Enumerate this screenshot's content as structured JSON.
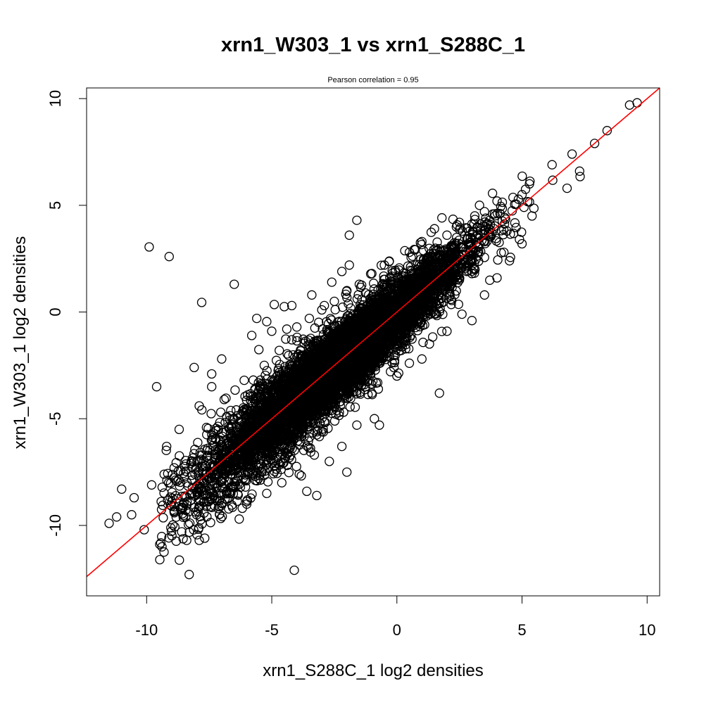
{
  "chart_data": {
    "type": "scatter",
    "title": "xrn1_W303_1 vs xrn1_S288C_1",
    "subtitle": "Pearson correlation =  0.95",
    "xlabel": "xrn1_S288C_1 log2 densities",
    "ylabel": "xrn1_W303_1 log2 densities",
    "xlim": [
      -12.4,
      10.5
    ],
    "ylim": [
      -13.3,
      10.5
    ],
    "xticks": [
      -10,
      -5,
      0,
      5,
      10
    ],
    "yticks": [
      -10,
      -5,
      0,
      5,
      10
    ],
    "xtick_labels": [
      "-10",
      "-5",
      "0",
      "5",
      "10"
    ],
    "ytick_labels": [
      "-10",
      "-5",
      "0",
      "5",
      "10"
    ],
    "grid": false,
    "legend": "none",
    "point_style": "open-circle",
    "point_color": "#000000",
    "fit_line": {
      "intercept": 0,
      "slope": 1,
      "color": "#ff0000"
    },
    "points": [
      [
        -9.9,
        3.05
      ],
      [
        -9.1,
        2.6
      ],
      [
        -6.5,
        1.3
      ],
      [
        -7.8,
        0.45
      ],
      [
        -4.9,
        0.35
      ],
      [
        -4.5,
        0.25
      ],
      [
        -4.2,
        0.3
      ],
      [
        -5.6,
        -0.3
      ],
      [
        -5.2,
        -0.45
      ],
      [
        -4.4,
        -0.8
      ],
      [
        -5.0,
        -0.9
      ],
      [
        -5.8,
        -1.1
      ],
      [
        -9.6,
        -3.5
      ],
      [
        -8.1,
        -2.6
      ],
      [
        -7.0,
        -2.2
      ],
      [
        1.7,
        -3.8
      ],
      [
        -1.3,
        -2.5
      ],
      [
        -0.7,
        -5.3
      ],
      [
        -4.1,
        -12.1
      ],
      [
        -8.3,
        -12.3
      ],
      [
        -11.5,
        -9.9
      ],
      [
        -11.0,
        -8.3
      ],
      [
        -10.1,
        -10.2
      ],
      [
        -10.6,
        -9.5
      ],
      [
        -11.2,
        -9.6
      ],
      [
        -1.6,
        4.3
      ],
      [
        -1.9,
        3.6
      ],
      [
        -1.9,
        2.2
      ],
      [
        -2.2,
        1.9
      ],
      [
        -2.6,
        1.4
      ],
      [
        -3.4,
        0.8
      ],
      [
        -2.9,
        0.3
      ],
      [
        1.5,
        3.9
      ],
      [
        3.3,
        5.0
      ],
      [
        3.9,
        4.6
      ],
      [
        1.3,
        -1.5
      ],
      [
        0.4,
        -1.2
      ],
      [
        2.5,
        1.5
      ],
      [
        2.6,
        -0.1
      ],
      [
        3.0,
        1.8
      ],
      [
        4.4,
        3.8
      ],
      [
        4.9,
        3.4
      ],
      [
        5.4,
        4.5
      ],
      [
        6.8,
        5.8
      ],
      [
        7.3,
        6.6
      ],
      [
        6.2,
        6.9
      ],
      [
        7.0,
        7.4
      ],
      [
        7.9,
        7.9
      ],
      [
        8.4,
        8.5
      ],
      [
        9.3,
        9.7
      ],
      [
        9.6,
        9.8
      ],
      [
        -8.9,
        -7.3
      ],
      [
        -9.2,
        -6.3
      ],
      [
        -8.7,
        -5.5
      ],
      [
        -7.9,
        -4.4
      ],
      [
        -7.4,
        -3.5
      ],
      [
        -7.4,
        -2.9
      ],
      [
        -6.9,
        -4.1
      ],
      [
        -7.3,
        -8.6
      ],
      [
        -7.9,
        -10.7
      ],
      [
        -8.6,
        -10.3
      ],
      [
        -8.4,
        -10.7
      ],
      [
        -6.3,
        -9.7
      ],
      [
        -6.0,
        -9.0
      ],
      [
        -5.2,
        -8.5
      ],
      [
        -4.6,
        -8.0
      ],
      [
        -3.6,
        -8.4
      ],
      [
        -3.9,
        -7.6
      ],
      [
        -3.2,
        -8.6
      ],
      [
        -2.7,
        -7.0
      ],
      [
        -2.2,
        -6.3
      ],
      [
        -1.6,
        -5.3
      ],
      [
        -0.9,
        -5.0
      ],
      [
        -3.3,
        -6.7
      ],
      [
        -2.0,
        -7.5
      ],
      [
        -4.0,
        -0.7
      ],
      [
        -3.5,
        -0.3
      ],
      [
        -3.0,
        0.1
      ],
      [
        -2.5,
        0.5
      ],
      [
        -2.0,
        1.0
      ],
      [
        -1.5,
        1.3
      ],
      [
        -1.0,
        1.8
      ],
      [
        -0.5,
        2.2
      ],
      [
        0.5,
        2.8
      ],
      [
        1.0,
        3.3
      ],
      [
        2.0,
        3.6
      ],
      [
        2.5,
        4.2
      ],
      [
        3.5,
        4.7
      ],
      [
        4.0,
        5.2
      ],
      [
        5.0,
        5.5
      ],
      [
        -1.0,
        -3.8
      ],
      [
        0.0,
        -3.0
      ],
      [
        0.5,
        -2.4
      ],
      [
        1.0,
        -2.2
      ],
      [
        2.0,
        -0.9
      ],
      [
        3.0,
        -0.4
      ],
      [
        3.5,
        0.8
      ],
      [
        4.0,
        1.6
      ],
      [
        4.5,
        2.4
      ],
      [
        5.0,
        3.2
      ],
      [
        -10.5,
        -8.7
      ],
      [
        -9.8,
        -8.1
      ],
      [
        -9.3,
        -7.6
      ],
      [
        -9.0,
        -9.1
      ],
      [
        -8.0,
        -9.5
      ],
      [
        -7.6,
        -6.8
      ],
      [
        -6.8,
        -7.5
      ],
      [
        -6.2,
        -5.7
      ],
      [
        -5.7,
        -4.8
      ],
      [
        -6.1,
        -3.2
      ],
      [
        -5.3,
        -2.5
      ],
      [
        -4.7,
        -1.8
      ],
      [
        -4.2,
        -1.3
      ],
      [
        -3.7,
        -2.9
      ],
      [
        -3.1,
        -1.8
      ],
      [
        -2.4,
        -1.2
      ],
      [
        -1.8,
        -0.4
      ],
      [
        -1.2,
        0.3
      ],
      [
        -0.6,
        0.9
      ],
      [
        0.2,
        1.6
      ],
      [
        0.8,
        2.0
      ],
      [
        1.6,
        2.6
      ],
      [
        2.2,
        3.1
      ],
      [
        2.8,
        3.4
      ],
      [
        3.6,
        4.1
      ],
      [
        -6.6,
        -8.2
      ],
      [
        -5.9,
        -7.3
      ],
      [
        -5.1,
        -6.6
      ],
      [
        -4.4,
        -6.4
      ],
      [
        -3.8,
        -5.8
      ],
      [
        -3.0,
        -5.6
      ],
      [
        -2.3,
        -4.7
      ],
      [
        -1.7,
        -3.3
      ],
      [
        -1.1,
        -2.7
      ],
      [
        -0.3,
        -2.1
      ],
      [
        0.3,
        -0.7
      ],
      [
        0.9,
        0.0
      ],
      [
        1.5,
        0.6
      ],
      [
        2.1,
        1.1
      ],
      [
        2.8,
        2.2
      ]
    ],
    "bulk_points": {
      "n": 6500,
      "x_range": [
        -9.5,
        7.5
      ],
      "center_x": -2.5,
      "sd_x": 2.6,
      "sd_y": 0.75,
      "seed": 12345
    }
  }
}
